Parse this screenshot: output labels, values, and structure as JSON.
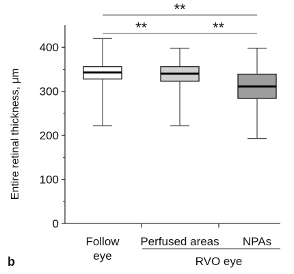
{
  "panel_label": "b",
  "group_label": "RVO eye",
  "chart_data": {
    "type": "boxplot",
    "ylabel": "Entire retinal thickness, μm",
    "ylim": [
      0,
      450
    ],
    "yticks": [
      0,
      100,
      200,
      300,
      400
    ],
    "ytick_labels": [
      "0",
      "100",
      "200",
      "300",
      "400"
    ],
    "categories": [
      {
        "label_lines": [
          "Follow",
          "eye"
        ],
        "min": 222,
        "q1": 328,
        "median": 343,
        "q3": 356,
        "max": 420,
        "fill": "#ffffff"
      },
      {
        "label_lines": [
          "Perfused areas"
        ],
        "min": 222,
        "q1": 323,
        "median": 340,
        "q3": 356,
        "max": 398,
        "fill": "#d0d0d0"
      },
      {
        "label_lines": [
          "NPAs"
        ],
        "min": 193,
        "q1": 284,
        "median": 311,
        "q3": 339,
        "max": 398,
        "fill": "#9e9e9e"
      }
    ],
    "significance": [
      {
        "from": 0,
        "to": 2,
        "label": "**"
      },
      {
        "from": 0,
        "to": 1,
        "label": "**"
      },
      {
        "from": 1,
        "to": 2,
        "label": "**"
      }
    ]
  }
}
